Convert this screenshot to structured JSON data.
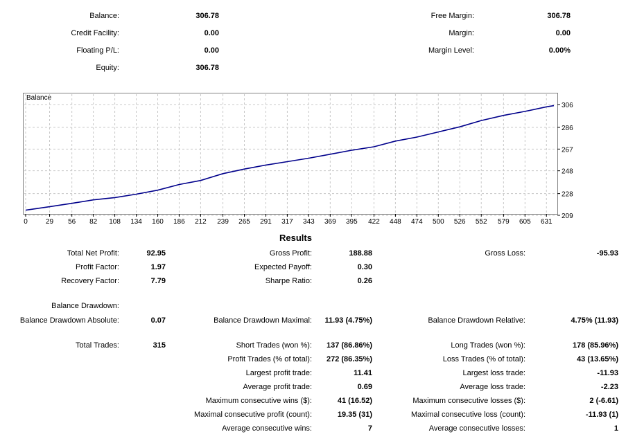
{
  "account": {
    "left": [
      {
        "label": "Balance:",
        "value": "306.78"
      },
      {
        "label": "Credit Facility:",
        "value": "0.00"
      },
      {
        "label": "Floating P/L:",
        "value": "0.00"
      },
      {
        "label": "Equity:",
        "value": "306.78"
      }
    ],
    "right": [
      {
        "label": "Free Margin:",
        "value": "306.78"
      },
      {
        "label": "Margin:",
        "value": "0.00"
      },
      {
        "label": "Margin Level:",
        "value": "0.00%"
      }
    ]
  },
  "chart_data": {
    "type": "line",
    "title": "Balance",
    "x_ticks": [
      "0",
      "29",
      "56",
      "82",
      "108",
      "134",
      "160",
      "186",
      "212",
      "239",
      "265",
      "291",
      "317",
      "343",
      "369",
      "395",
      "422",
      "448",
      "474",
      "500",
      "526",
      "552",
      "579",
      "605",
      "631"
    ],
    "y_ticks": [
      "306",
      "286",
      "267",
      "248",
      "228",
      "209"
    ],
    "xlim": [
      0,
      640
    ],
    "ylim": [
      209,
      306
    ],
    "series": [
      {
        "values": [
          [
            0,
            213.5
          ],
          [
            29,
            216.5
          ],
          [
            56,
            219.5
          ],
          [
            82,
            222.5
          ],
          [
            108,
            224.5
          ],
          [
            134,
            227.5
          ],
          [
            160,
            231
          ],
          [
            186,
            236
          ],
          [
            212,
            239.5
          ],
          [
            239,
            245.5
          ],
          [
            265,
            249.5
          ],
          [
            291,
            253
          ],
          [
            317,
            256
          ],
          [
            343,
            259
          ],
          [
            369,
            262.5
          ],
          [
            395,
            266
          ],
          [
            422,
            269
          ],
          [
            448,
            274
          ],
          [
            474,
            277.5
          ],
          [
            500,
            282
          ],
          [
            526,
            286.5
          ],
          [
            552,
            292
          ],
          [
            579,
            296.5
          ],
          [
            605,
            300
          ],
          [
            631,
            304
          ],
          [
            640,
            305
          ]
        ],
        "color": "#00008b"
      }
    ],
    "grid": true
  },
  "results": {
    "title": "Results",
    "col1": [
      {
        "label": "Total Net Profit:",
        "value": "92.95"
      },
      {
        "label": "Profit Factor:",
        "value": "1.97"
      },
      {
        "label": "Recovery Factor:",
        "value": "7.79"
      },
      {
        "label": "Balance Drawdown:",
        "value": ""
      },
      {
        "label": "Balance Drawdown Absolute:",
        "value": "0.07"
      },
      {
        "label": "Total Trades:",
        "value": "315"
      }
    ],
    "col2": [
      {
        "label": "Gross Profit:",
        "value": "188.88"
      },
      {
        "label": "Expected Payoff:",
        "value": "0.30"
      },
      {
        "label": "Sharpe Ratio:",
        "value": "0.26"
      },
      {
        "label": "Balance Drawdown Maximal:",
        "value": "11.93 (4.75%)"
      },
      {
        "label": "Short Trades (won %):",
        "value": "137 (86.86%)"
      },
      {
        "label": "Profit Trades (% of total):",
        "value": "272 (86.35%)"
      },
      {
        "label": "Largest profit trade:",
        "value": "11.41"
      },
      {
        "label": "Average profit trade:",
        "value": "0.69"
      },
      {
        "label": "Maximum consecutive wins ($):",
        "value": "41 (16.52)"
      },
      {
        "label": "Maximal consecutive profit (count):",
        "value": "19.35 (31)"
      },
      {
        "label": "Average consecutive wins:",
        "value": "7"
      }
    ],
    "col3": [
      {
        "label": "Gross Loss:",
        "value": "-95.93"
      },
      {
        "label": "Balance Drawdown Relative:",
        "value": "4.75% (11.93)"
      },
      {
        "label": "Long Trades (won %):",
        "value": "178 (85.96%)"
      },
      {
        "label": "Loss Trades (% of total):",
        "value": "43 (13.65%)"
      },
      {
        "label": "Largest loss trade:",
        "value": "-11.93"
      },
      {
        "label": "Average loss trade:",
        "value": "-2.23"
      },
      {
        "label": "Maximum consecutive losses ($):",
        "value": "2 (-6.61)"
      },
      {
        "label": "Maximal consecutive loss (count):",
        "value": "-11.93 (1)"
      },
      {
        "label": "Average consecutive losses:",
        "value": "1"
      }
    ]
  }
}
